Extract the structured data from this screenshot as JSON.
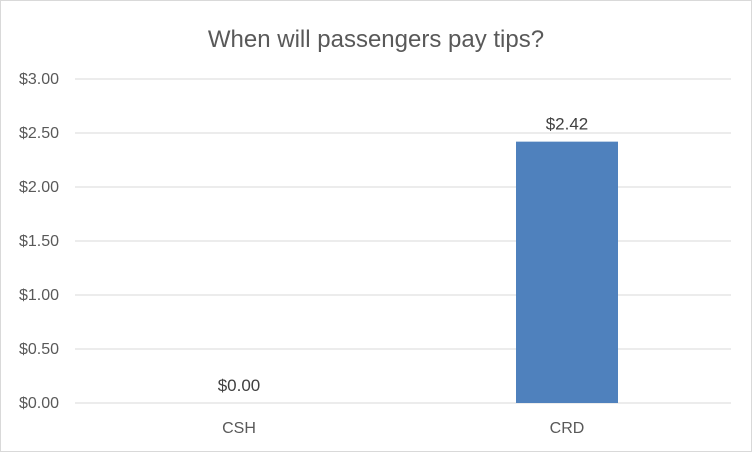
{
  "chart_data": {
    "type": "bar",
    "title": "When will passengers pay tips?",
    "categories": [
      "CSH",
      "CRD"
    ],
    "values": [
      0.0,
      2.42
    ],
    "data_labels": [
      "$0.00",
      "$2.42"
    ],
    "xlabel": "",
    "ylabel": "",
    "ylim": [
      0,
      3.0
    ],
    "y_ticks": [
      0,
      0.5,
      1.0,
      1.5,
      2.0,
      2.5,
      3.0
    ],
    "y_tick_labels": [
      "$0.00",
      "$0.50",
      "$1.00",
      "$1.50",
      "$2.00",
      "$2.50",
      "$3.00"
    ],
    "grid": true,
    "legend": "none",
    "bar_color": "#4f81bd"
  }
}
